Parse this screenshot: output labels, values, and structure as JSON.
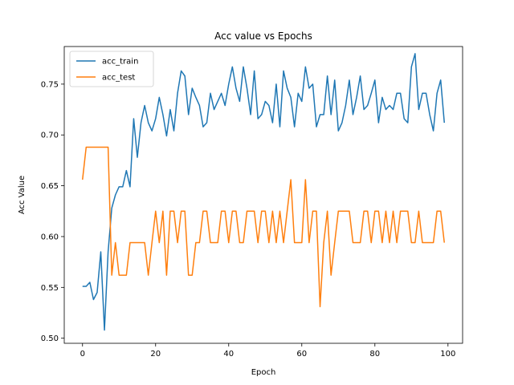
{
  "chart_data": {
    "type": "line",
    "title": "Acc value vs Epochs",
    "xlabel": "Epoch",
    "ylabel": "Acc Value",
    "xlim": [
      -5,
      104
    ],
    "ylim": [
      0.495,
      0.787
    ],
    "xticks": [
      0,
      20,
      40,
      60,
      80,
      100
    ],
    "xtick_labels": [
      "0",
      "20",
      "40",
      "60",
      "80",
      "100"
    ],
    "yticks": [
      0.5,
      0.55,
      0.6,
      0.65,
      0.7,
      0.75
    ],
    "ytick_labels": [
      "0.50",
      "0.55",
      "0.60",
      "0.65",
      "0.70",
      "0.75"
    ],
    "grid": false,
    "legend_position": "top-left",
    "series": [
      {
        "name": "acc_train",
        "color": "#1f77b4",
        "values": [
          0.551,
          0.551,
          0.555,
          0.538,
          0.545,
          0.585,
          0.508,
          0.585,
          0.628,
          0.641,
          0.649,
          0.649,
          0.665,
          0.649,
          0.716,
          0.678,
          0.712,
          0.729,
          0.712,
          0.704,
          0.716,
          0.737,
          0.72,
          0.699,
          0.725,
          0.704,
          0.741,
          0.763,
          0.758,
          0.72,
          0.746,
          0.737,
          0.729,
          0.708,
          0.712,
          0.741,
          0.725,
          0.733,
          0.741,
          0.729,
          0.75,
          0.767,
          0.746,
          0.733,
          0.767,
          0.746,
          0.72,
          0.763,
          0.716,
          0.72,
          0.733,
          0.729,
          0.712,
          0.75,
          0.708,
          0.763,
          0.746,
          0.737,
          0.708,
          0.741,
          0.733,
          0.767,
          0.746,
          0.75,
          0.708,
          0.72,
          0.72,
          0.758,
          0.72,
          0.754,
          0.704,
          0.712,
          0.729,
          0.754,
          0.72,
          0.737,
          0.758,
          0.725,
          0.729,
          0.741,
          0.754,
          0.712,
          0.737,
          0.725,
          0.729,
          0.725,
          0.741,
          0.741,
          0.716,
          0.712,
          0.767,
          0.78,
          0.725,
          0.741,
          0.741,
          0.72,
          0.704,
          0.741,
          0.754,
          0.712
        ]
      },
      {
        "name": "acc_test",
        "color": "#ff7f0e",
        "values": [
          0.656,
          0.688,
          0.688,
          0.688,
          0.688,
          0.688,
          0.688,
          0.688,
          0.562,
          0.594,
          0.562,
          0.562,
          0.562,
          0.594,
          0.594,
          0.594,
          0.594,
          0.594,
          0.562,
          0.594,
          0.625,
          0.594,
          0.625,
          0.562,
          0.625,
          0.625,
          0.594,
          0.625,
          0.625,
          0.562,
          0.562,
          0.594,
          0.594,
          0.625,
          0.625,
          0.594,
          0.594,
          0.594,
          0.625,
          0.625,
          0.594,
          0.625,
          0.625,
          0.594,
          0.594,
          0.625,
          0.625,
          0.625,
          0.594,
          0.625,
          0.625,
          0.594,
          0.625,
          0.594,
          0.625,
          0.594,
          0.625,
          0.656,
          0.594,
          0.594,
          0.594,
          0.656,
          0.594,
          0.625,
          0.625,
          0.531,
          0.594,
          0.625,
          0.562,
          0.594,
          0.625,
          0.625,
          0.625,
          0.625,
          0.594,
          0.594,
          0.594,
          0.625,
          0.625,
          0.594,
          0.625,
          0.625,
          0.594,
          0.625,
          0.594,
          0.625,
          0.594,
          0.625,
          0.625,
          0.625,
          0.594,
          0.594,
          0.625,
          0.594,
          0.594,
          0.594,
          0.594,
          0.625,
          0.625,
          0.594
        ]
      }
    ]
  }
}
